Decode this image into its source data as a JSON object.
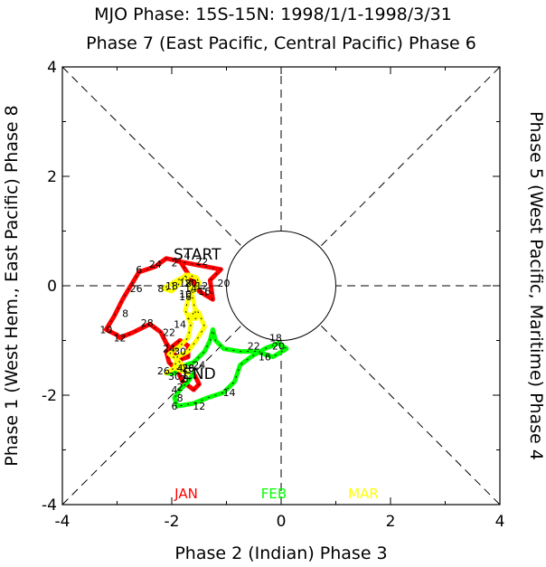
{
  "chart_data": {
    "type": "line",
    "title": "MJO Phase: 15S-15N: 1998/1/1-1998/3/31",
    "top_label": "Phase 7 (East Pacific, Central Pacific) Phase 6",
    "xlabel": "Phase 2 (Indian) Phase 3",
    "ylabel_left": "Phase 1 (West Hem., East Pacific) Phase 8",
    "ylabel_right": "Phase 5 (West Pacific, Maritime) Phase 4",
    "xlim": [
      -4,
      4
    ],
    "ylim": [
      -4,
      4
    ],
    "x_ticks": [
      "-4",
      "-2",
      "0",
      "2",
      "4"
    ],
    "y_ticks": [
      "-4",
      "-2",
      "0",
      "2",
      "4"
    ],
    "unit_circle_radius": 1,
    "start_label": "START",
    "end_label": "END",
    "legend": [
      {
        "name": "JAN",
        "color": "#ff0000"
      },
      {
        "name": "FEB",
        "color": "#00ff00"
      },
      {
        "name": "MAR",
        "color": "#ffff00"
      }
    ],
    "series": [
      {
        "name": "JAN",
        "color": "#ff0000",
        "points": [
          [
            -1.9,
            0.45
          ],
          [
            -1.1,
            0.3
          ],
          [
            -1.3,
            0.1
          ],
          [
            -1.25,
            -0.25
          ],
          [
            -1.5,
            -0.1
          ],
          [
            -1.85,
            0.45
          ],
          [
            -2.1,
            0.5
          ],
          [
            -2.3,
            0.35
          ],
          [
            -2.6,
            0.25
          ],
          [
            -2.75,
            0.0
          ],
          [
            -2.9,
            -0.25
          ],
          [
            -3.05,
            -0.55
          ],
          [
            -3.2,
            -0.8
          ],
          [
            -3.0,
            -0.9
          ],
          [
            -2.95,
            -0.95
          ],
          [
            -2.7,
            -0.85
          ],
          [
            -2.4,
            -0.7
          ],
          [
            -2.2,
            -0.85
          ],
          [
            -2.1,
            -1.05
          ],
          [
            -2.0,
            -1.2
          ],
          [
            -1.85,
            -1.35
          ],
          [
            -1.7,
            -1.3
          ],
          [
            -1.7,
            -1.1
          ],
          [
            -1.85,
            -1.0
          ],
          [
            -2.1,
            -1.2
          ],
          [
            -2.05,
            -1.4
          ],
          [
            -1.9,
            -1.55
          ],
          [
            -1.8,
            -1.75
          ],
          [
            -1.6,
            -1.9
          ],
          [
            -1.5,
            -1.8
          ],
          [
            -1.6,
            -1.6
          ]
        ],
        "labels": [
          {
            "day": "2",
            "x": -1.95,
            "y": 0.42
          },
          {
            "day": "4",
            "x": -1.72,
            "y": 0.55
          },
          {
            "day": "24",
            "x": -2.3,
            "y": 0.4
          },
          {
            "day": "6",
            "x": -2.6,
            "y": 0.3
          },
          {
            "day": "26",
            "x": -2.65,
            "y": -0.05
          },
          {
            "day": "8",
            "x": -2.85,
            "y": -0.5
          },
          {
            "day": "28",
            "x": -2.45,
            "y": -0.68
          },
          {
            "day": "10",
            "x": -3.2,
            "y": -0.8
          },
          {
            "day": "12",
            "x": -2.95,
            "y": -0.95
          },
          {
            "day": "30",
            "x": -1.85,
            "y": -1.2
          },
          {
            "day": "14",
            "x": -1.85,
            "y": -0.7
          },
          {
            "day": "20",
            "x": -1.05,
            "y": 0.05
          },
          {
            "day": "22",
            "x": -1.45,
            "y": 0.45
          },
          {
            "day": "16",
            "x": -1.4,
            "y": -0.1
          },
          {
            "day": "18",
            "x": -1.75,
            "y": 0.05
          }
        ]
      },
      {
        "name": "FEB",
        "color": "#00ff00",
        "points": [
          [
            -1.6,
            -1.6
          ],
          [
            -1.7,
            -1.75
          ],
          [
            -1.85,
            -1.9
          ],
          [
            -1.95,
            -2.05
          ],
          [
            -1.9,
            -2.2
          ],
          [
            -1.6,
            -2.15
          ],
          [
            -1.35,
            -2.05
          ],
          [
            -1.05,
            -1.95
          ],
          [
            -0.85,
            -1.75
          ],
          [
            -0.75,
            -1.45
          ],
          [
            -0.55,
            -1.3
          ],
          [
            -0.3,
            -1.15
          ],
          [
            -0.05,
            -1.05
          ],
          [
            0.1,
            -1.15
          ],
          [
            -0.15,
            -1.3
          ],
          [
            -0.45,
            -1.2
          ],
          [
            -0.75,
            -1.2
          ],
          [
            -1.05,
            -1.15
          ],
          [
            -1.2,
            -1.0
          ],
          [
            -1.25,
            -0.8
          ],
          [
            -1.3,
            -1.0
          ],
          [
            -1.4,
            -1.2
          ],
          [
            -1.5,
            -1.3
          ],
          [
            -1.6,
            -1.4
          ],
          [
            -1.75,
            -1.45
          ],
          [
            -1.9,
            -1.5
          ],
          [
            -1.95,
            -1.6
          ],
          [
            -2.1,
            -1.6
          ]
        ],
        "labels": [
          {
            "day": "2",
            "x": -1.8,
            "y": -1.7
          },
          {
            "day": "4",
            "x": -1.95,
            "y": -1.9
          },
          {
            "day": "6",
            "x": -1.95,
            "y": -2.2
          },
          {
            "day": "8",
            "x": -1.85,
            "y": -2.05
          },
          {
            "day": "12",
            "x": -1.5,
            "y": -2.2
          },
          {
            "day": "14",
            "x": -0.95,
            "y": -1.95
          },
          {
            "day": "16",
            "x": -0.3,
            "y": -1.3
          },
          {
            "day": "18",
            "x": -0.1,
            "y": -0.95
          },
          {
            "day": "20",
            "x": -0.05,
            "y": -1.1
          },
          {
            "day": "22",
            "x": -0.5,
            "y": -1.1
          },
          {
            "day": "24",
            "x": -1.5,
            "y": -1.45
          },
          {
            "day": "26",
            "x": -1.7,
            "y": -1.5
          },
          {
            "day": "28",
            "x": -1.7,
            "y": -1.5
          }
        ]
      },
      {
        "name": "MAR",
        "color": "#ffff00",
        "points": [
          [
            -2.1,
            -1.6
          ],
          [
            -1.95,
            -1.5
          ],
          [
            -1.75,
            -1.5
          ],
          [
            -1.9,
            -1.35
          ],
          [
            -2.05,
            -1.25
          ],
          [
            -1.85,
            -1.1
          ],
          [
            -1.7,
            -0.95
          ],
          [
            -1.65,
            -0.7
          ],
          [
            -1.75,
            -0.45
          ],
          [
            -1.7,
            -0.25
          ],
          [
            -1.6,
            -0.1
          ],
          [
            -1.5,
            0.05
          ],
          [
            -1.55,
            0.15
          ],
          [
            -1.7,
            0.2
          ],
          [
            -1.9,
            0.1
          ],
          [
            -2.15,
            -0.05
          ],
          [
            -2.0,
            -0.1
          ],
          [
            -1.85,
            0.05
          ],
          [
            -1.75,
            0.2
          ],
          [
            -1.65,
            -0.05
          ],
          [
            -1.6,
            -0.3
          ],
          [
            -1.55,
            -0.6
          ],
          [
            -1.7,
            -0.6
          ],
          [
            -1.55,
            -0.45
          ],
          [
            -1.5,
            -0.5
          ],
          [
            -1.4,
            -0.75
          ],
          [
            -1.55,
            -1.0
          ],
          [
            -1.7,
            -1.2
          ],
          [
            -1.9,
            -1.3
          ],
          [
            -1.95,
            -1.5
          ],
          [
            -1.7,
            -1.6
          ]
        ],
        "labels": [
          {
            "day": "2",
            "x": -1.85,
            "y": -1.85
          },
          {
            "day": "4",
            "x": -1.85,
            "y": -1.5
          },
          {
            "day": "8",
            "x": -2.2,
            "y": -0.05
          },
          {
            "day": "10",
            "x": -1.75,
            "y": -0.15
          },
          {
            "day": "12",
            "x": -1.45,
            "y": 0.0
          },
          {
            "day": "14",
            "x": -1.65,
            "y": -0.05
          },
          {
            "day": "16",
            "x": -1.75,
            "y": -0.2
          },
          {
            "day": "18",
            "x": -2.0,
            "y": 0.0
          },
          {
            "day": "20",
            "x": -1.65,
            "y": 0.05
          },
          {
            "day": "22",
            "x": -2.05,
            "y": -0.85
          },
          {
            "day": "24",
            "x": -2.05,
            "y": -1.15
          },
          {
            "day": "26",
            "x": -2.15,
            "y": -1.55
          },
          {
            "day": "28",
            "x": -1.7,
            "y": -1.5
          },
          {
            "day": "30",
            "x": -1.95,
            "y": -1.65
          },
          {
            "day": "8",
            "x": -1.75,
            "y": -1.7
          }
        ]
      }
    ],
    "start_point": [
      -1.9,
      0.45
    ],
    "end_point": [
      -1.7,
      -1.6
    ]
  }
}
